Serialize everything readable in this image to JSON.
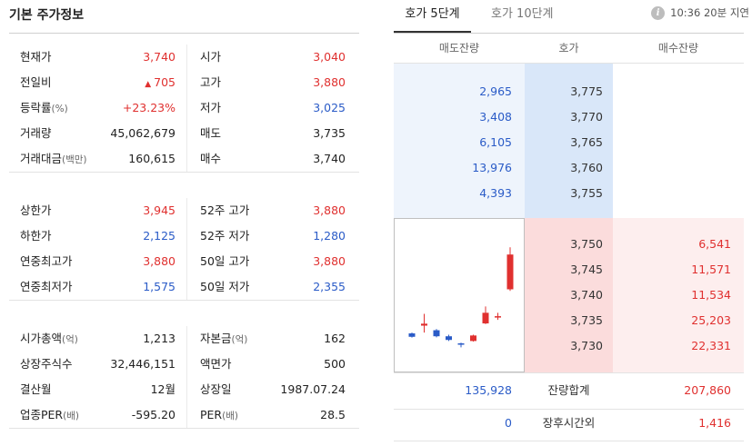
{
  "basic_info": {
    "title": "기본 주가정보",
    "group1": [
      {
        "label": "현재가",
        "value": "3,740",
        "value_color": "red",
        "label2": "시가",
        "value2": "3,040",
        "value2_color": "red"
      },
      {
        "label": "전일비",
        "value": "705",
        "value_prefix": "▲",
        "value_color": "red",
        "label2": "고가",
        "value2": "3,880",
        "value2_color": "red"
      },
      {
        "label": "등락률",
        "unit": "(%)",
        "value": "+23.23%",
        "value_color": "red",
        "label2": "저가",
        "value2": "3,025",
        "value2_color": "blue"
      },
      {
        "label": "거래량",
        "value": "45,062,679",
        "label2": "매도",
        "value2": "3,735"
      },
      {
        "label": "거래대금",
        "unit": "(백만)",
        "value": "160,615",
        "label2": "매수",
        "value2": "3,740"
      }
    ],
    "group2": [
      {
        "label": "상한가",
        "value": "3,945",
        "value_color": "red",
        "label2": "52주 고가",
        "value2": "3,880",
        "value2_color": "red"
      },
      {
        "label": "하한가",
        "value": "2,125",
        "value_color": "blue",
        "label2": "52주 저가",
        "value2": "1,280",
        "value2_color": "blue"
      },
      {
        "label": "연중최고가",
        "value": "3,880",
        "value_color": "red",
        "label2": "50일 고가",
        "value2": "3,880",
        "value2_color": "red"
      },
      {
        "label": "연중최저가",
        "value": "1,575",
        "value_color": "blue",
        "label2": "50일 저가",
        "value2": "2,355",
        "value2_color": "blue"
      }
    ],
    "group3": [
      {
        "label": "시가총액",
        "unit": "(억)",
        "value": "1,213",
        "label2": "자본금",
        "unit2": "(억)",
        "value2": "162"
      },
      {
        "label": "상장주식수",
        "value": "32,446,151",
        "label2": "액면가",
        "value2": "500"
      },
      {
        "label": "결산월",
        "value": "12월",
        "label2": "상장일",
        "value2": "1987.07.24"
      },
      {
        "label": "업종PER",
        "unit": "(배)",
        "value": "-595.20",
        "label2": "PER",
        "unit2": "(배)",
        "value2": "28.5"
      }
    ]
  },
  "orderbook": {
    "tabs": [
      {
        "label": "호가 5단계",
        "active": true
      },
      {
        "label": "호가 10단계",
        "active": false
      }
    ],
    "delay_info": "10:36 20분 지연",
    "info_icon_glyph": "i",
    "headers": {
      "sell": "매도잔량",
      "price": "호가",
      "buy": "매수잔량"
    },
    "asks": [
      {
        "volume": "2,965",
        "price": "3,775"
      },
      {
        "volume": "3,408",
        "price": "3,770"
      },
      {
        "volume": "6,105",
        "price": "3,765"
      },
      {
        "volume": "13,976",
        "price": "3,760"
      },
      {
        "volume": "4,393",
        "price": "3,755"
      }
    ],
    "bids": [
      {
        "price": "3,750",
        "volume": "6,541"
      },
      {
        "price": "3,745",
        "volume": "11,571"
      },
      {
        "price": "3,740",
        "volume": "11,534"
      },
      {
        "price": "3,735",
        "volume": "25,203"
      },
      {
        "price": "3,730",
        "volume": "22,331"
      }
    ],
    "total": {
      "label": "잔량합계",
      "sell": "135,928",
      "buy": "207,860"
    },
    "after_hours": {
      "label": "장후시간외",
      "sell": "0",
      "buy": "1,416"
    }
  },
  "colors": {
    "up": "#e0302f",
    "down": "#2a5bc7",
    "sell_bg": "#eef4fc",
    "buy_bg": "#fdeeee"
  },
  "mini_chart": {
    "candles": [
      {
        "o": 3066,
        "c": 3040,
        "h": 3072,
        "l": 3034
      },
      {
        "o": 3125,
        "c": 3140,
        "h": 3215,
        "l": 3072
      },
      {
        "o": 3090,
        "c": 3044,
        "h": 3099,
        "l": 3036
      },
      {
        "o": 3044,
        "c": 3016,
        "h": 3056,
        "l": 3008
      },
      {
        "o": 2990,
        "c": 2985,
        "h": 2995,
        "l": 2960
      },
      {
        "o": 3008,
        "c": 3050,
        "h": 3056,
        "l": 3004
      },
      {
        "o": 3142,
        "c": 3223,
        "h": 3271,
        "l": 3137
      },
      {
        "o": 3193,
        "c": 3197,
        "h": 3223,
        "l": 3169
      },
      {
        "o": 3402,
        "c": 3667,
        "h": 3722,
        "l": 3390
      }
    ]
  }
}
